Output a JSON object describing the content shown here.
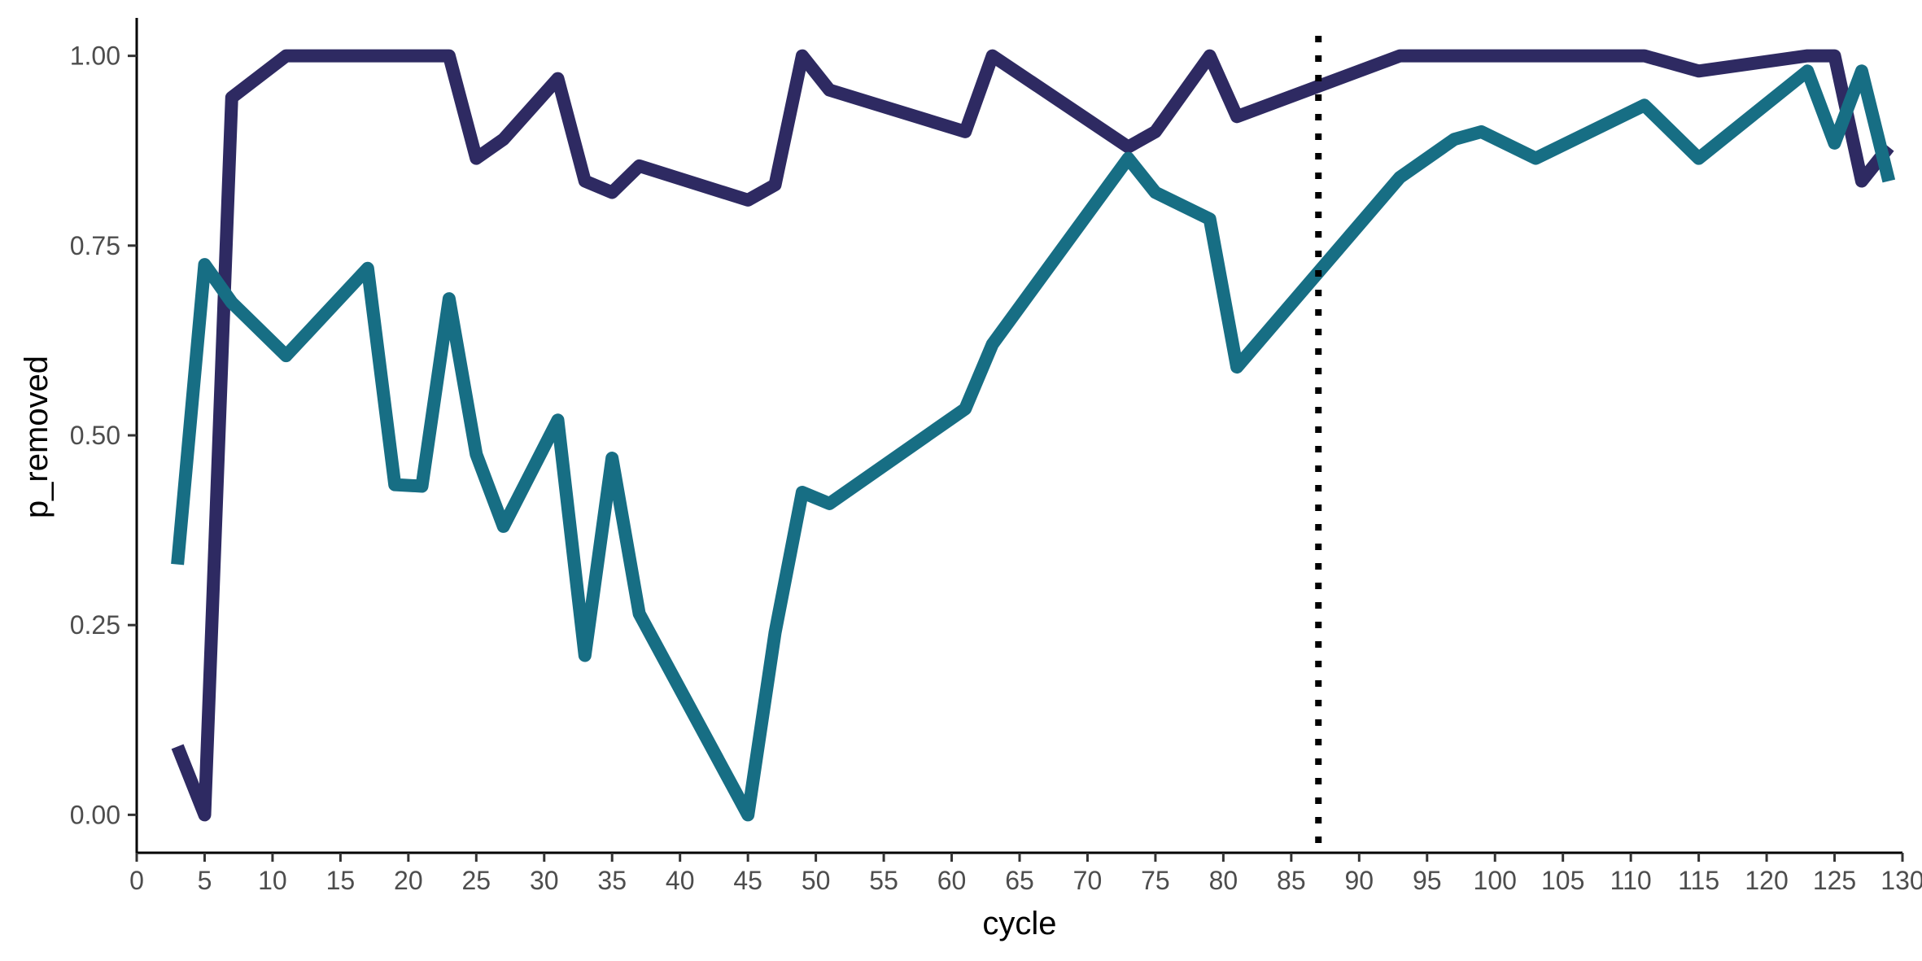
{
  "chart_data": {
    "type": "line",
    "title": "",
    "xlabel": "cycle",
    "ylabel": "p_removed",
    "xlim": [
      0,
      130
    ],
    "ylim": [
      -0.05,
      1.05
    ],
    "x_ticks": [
      0,
      5,
      10,
      15,
      20,
      25,
      30,
      35,
      40,
      45,
      50,
      55,
      60,
      65,
      70,
      75,
      80,
      85,
      90,
      95,
      100,
      105,
      110,
      115,
      120,
      125,
      130
    ],
    "y_ticks": [
      0,
      0.25,
      0.5,
      0.75,
      1.0
    ],
    "y_tick_labels": [
      "0.00",
      "0.25",
      "0.50",
      "0.75",
      "1.00"
    ],
    "grid": false,
    "legend": "none",
    "vline": {
      "x": 87,
      "style": "dotted",
      "color": "#000000"
    },
    "series": [
      {
        "color": "#2e2a62",
        "points": [
          [
            3,
            0.09
          ],
          [
            5,
            0.0
          ],
          [
            7,
            0.945
          ],
          [
            11,
            1.0
          ],
          [
            13,
            1.0
          ],
          [
            15,
            1.0
          ],
          [
            17,
            1.0
          ],
          [
            19,
            1.0
          ],
          [
            21,
            1.0
          ],
          [
            23,
            1.0
          ],
          [
            25,
            0.865
          ],
          [
            27,
            0.89
          ],
          [
            31,
            0.97
          ],
          [
            33,
            0.835
          ],
          [
            35,
            0.82
          ],
          [
            37,
            0.855
          ],
          [
            45,
            0.81
          ],
          [
            47,
            0.83
          ],
          [
            49,
            1.0
          ],
          [
            51,
            0.955
          ],
          [
            61,
            0.9
          ],
          [
            63,
            1.0
          ],
          [
            73,
            0.88
          ],
          [
            75,
            0.9
          ],
          [
            79,
            1.0
          ],
          [
            81,
            0.92
          ],
          [
            93,
            1.0
          ],
          [
            97,
            1.0
          ],
          [
            101,
            1.0
          ],
          [
            105,
            1.0
          ],
          [
            111,
            1.0
          ],
          [
            115,
            0.98
          ],
          [
            123,
            1.0
          ],
          [
            125,
            1.0
          ],
          [
            127,
            0.835
          ],
          [
            129,
            0.88
          ]
        ]
      },
      {
        "color": "#176e84",
        "points": [
          [
            3,
            0.33
          ],
          [
            5,
            0.725
          ],
          [
            7,
            0.675
          ],
          [
            11,
            0.605
          ],
          [
            17,
            0.72
          ],
          [
            19,
            0.435
          ],
          [
            21,
            0.433
          ],
          [
            23,
            0.68
          ],
          [
            25,
            0.475
          ],
          [
            27,
            0.38
          ],
          [
            31,
            0.52
          ],
          [
            33,
            0.21
          ],
          [
            35,
            0.47
          ],
          [
            37,
            0.265
          ],
          [
            45,
            0.0
          ],
          [
            47,
            0.24
          ],
          [
            49,
            0.425
          ],
          [
            51,
            0.41
          ],
          [
            61,
            0.535
          ],
          [
            63,
            0.62
          ],
          [
            73,
            0.865
          ],
          [
            75,
            0.82
          ],
          [
            79,
            0.785
          ],
          [
            81,
            0.59
          ],
          [
            93,
            0.84
          ],
          [
            97,
            0.89
          ],
          [
            99,
            0.9
          ],
          [
            103,
            0.865
          ],
          [
            111,
            0.935
          ],
          [
            115,
            0.865
          ],
          [
            123,
            0.98
          ],
          [
            125,
            0.885
          ],
          [
            127,
            0.98
          ],
          [
            129,
            0.835
          ]
        ]
      }
    ]
  }
}
